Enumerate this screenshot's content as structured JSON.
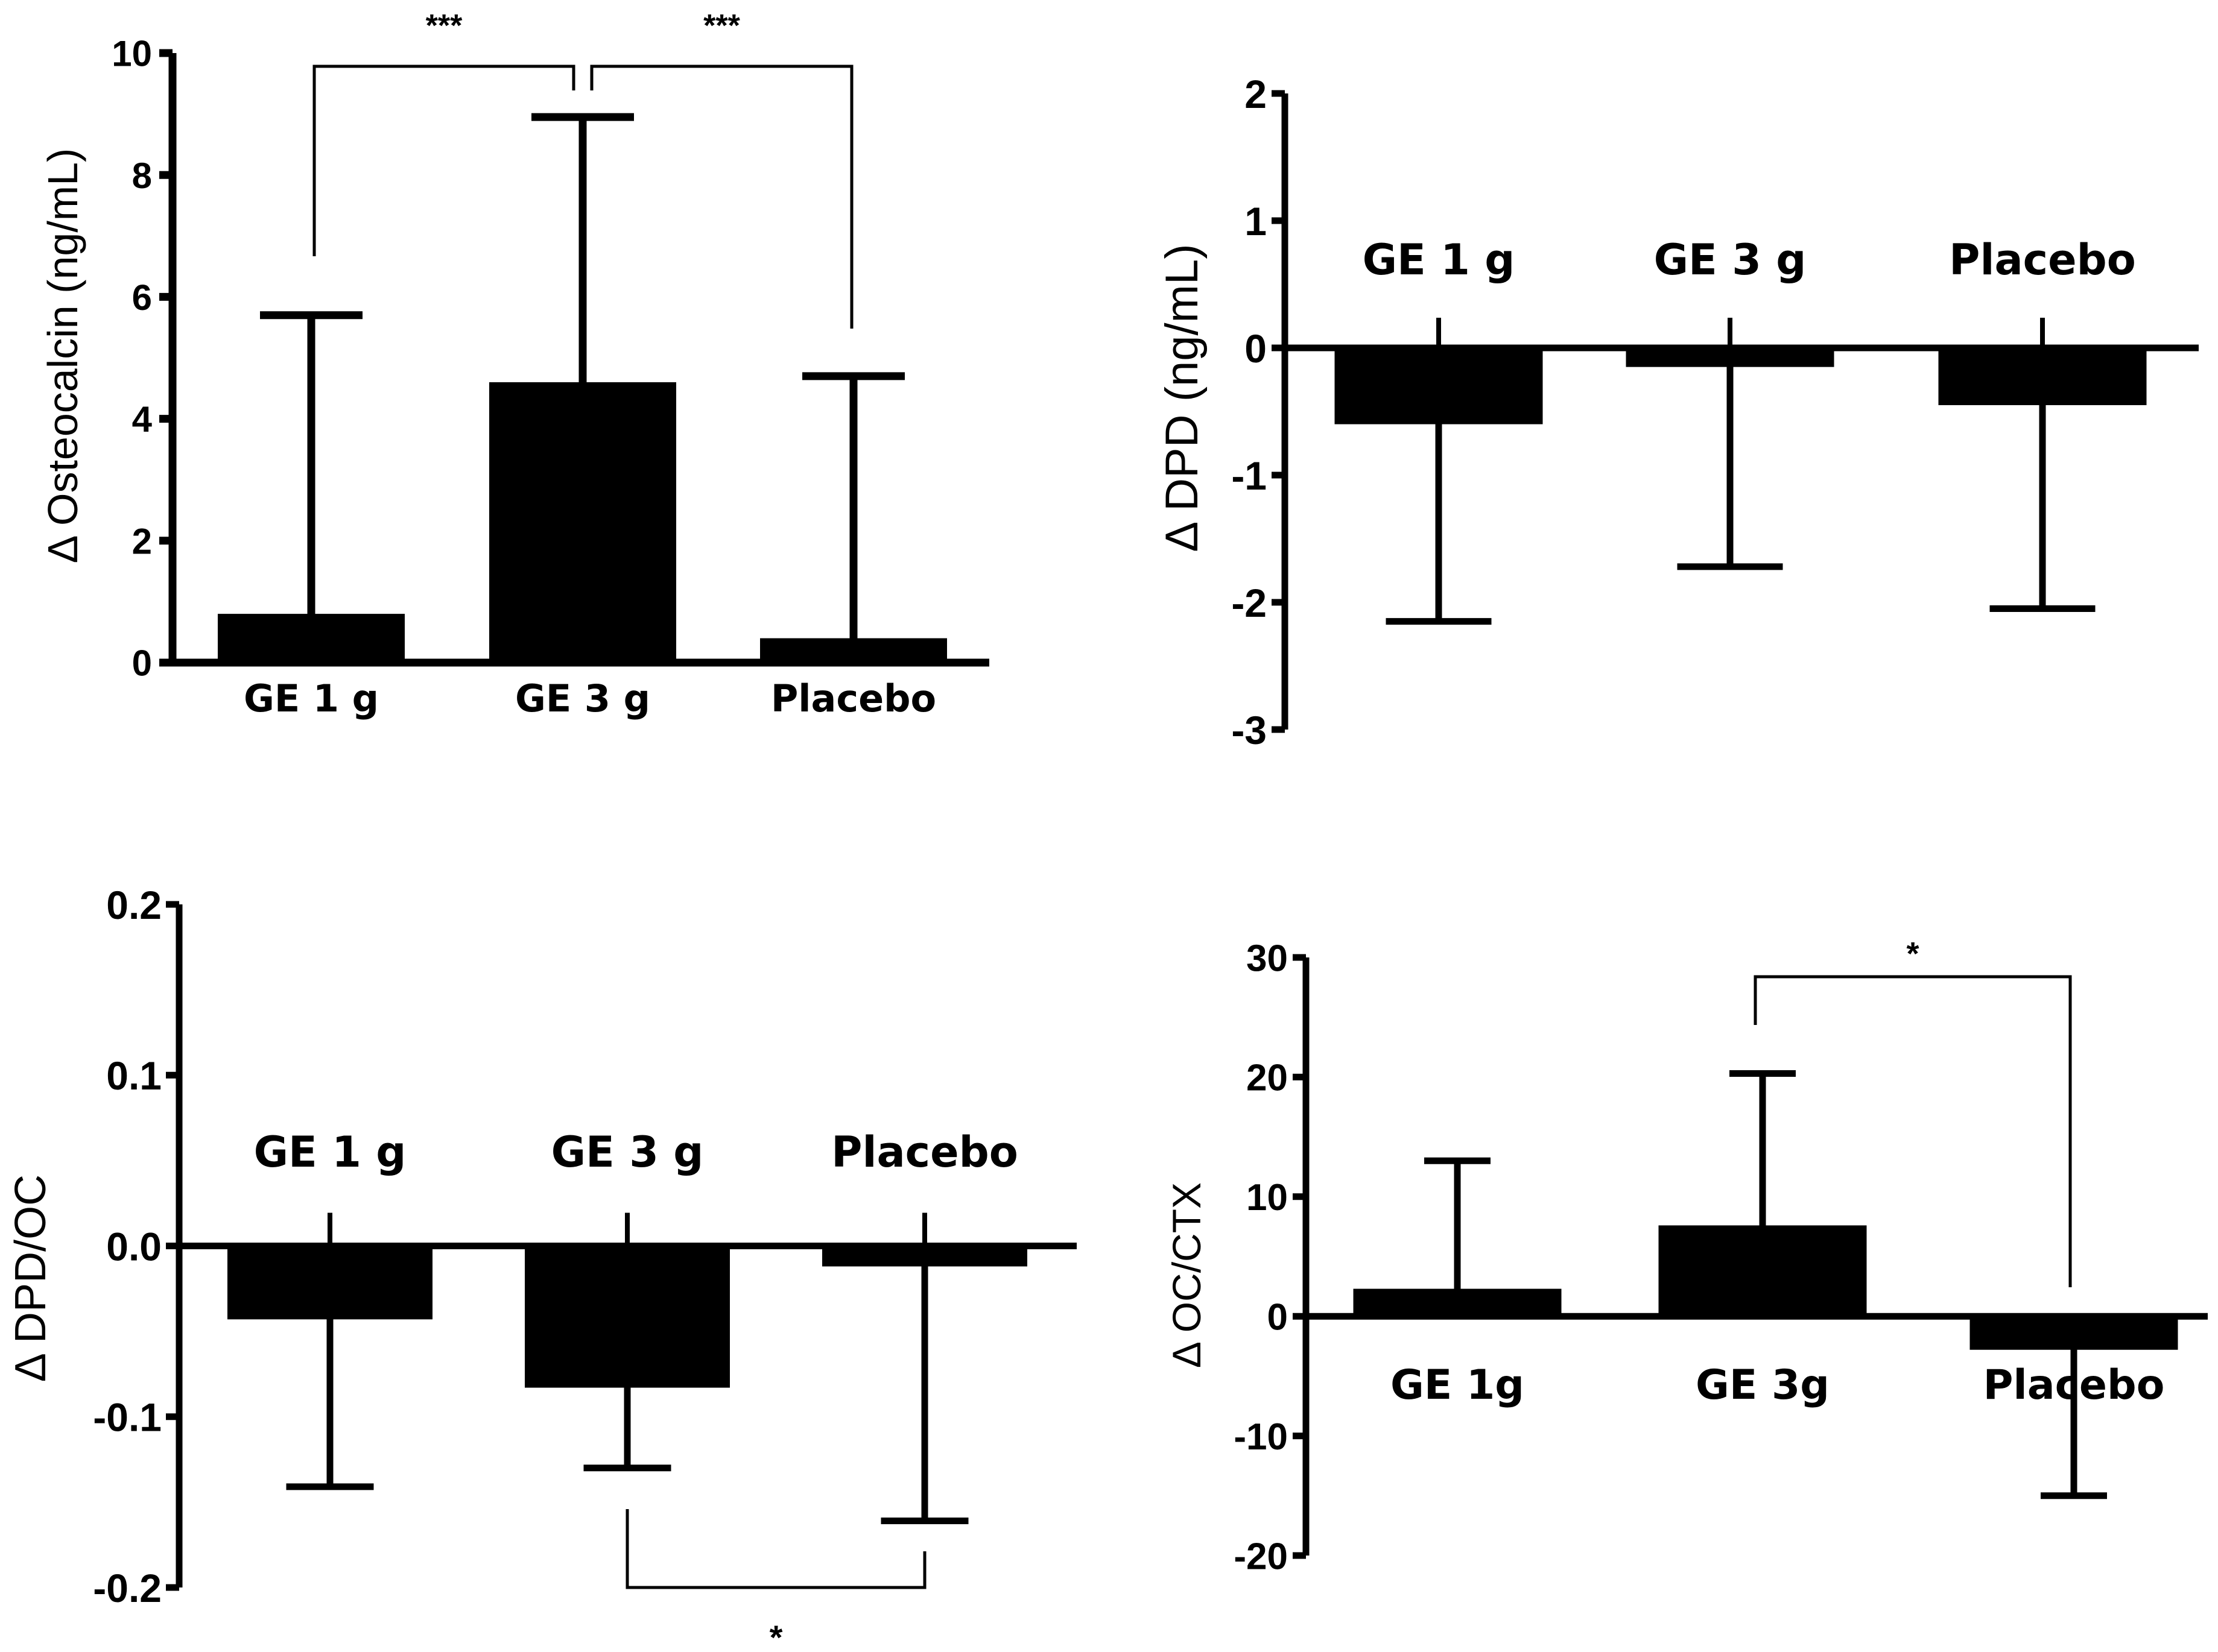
{
  "chart_data": [
    {
      "type": "bar",
      "panel": "top-left",
      "categories": [
        "GE 1 g",
        "GE 3 g",
        "Placebo"
      ],
      "values": [
        0.8,
        4.6,
        0.4
      ],
      "error_bars": [
        5.7,
        8.95,
        4.7
      ],
      "ylabel": "Δ Osteocalcin (ng/mL)",
      "ylim": [
        0,
        10
      ],
      "yticks": [
        "0",
        "2",
        "4",
        "6",
        "8",
        "10"
      ],
      "category_label_position": "below-axis",
      "significance": [
        {
          "from": "GE 1 g",
          "to": "GE 3 g",
          "label": "***"
        },
        {
          "from": "GE 3 g",
          "to": "Placebo",
          "label": "***"
        }
      ]
    },
    {
      "type": "bar",
      "panel": "top-right",
      "categories": [
        "GE 1 g",
        "GE 3 g",
        "Placebo"
      ],
      "values": [
        -0.6,
        -0.15,
        -0.45
      ],
      "error_bars": [
        -2.15,
        -1.72,
        -2.05
      ],
      "ylabel": "Δ DPD (ng/mL)",
      "ylim": [
        -3,
        2
      ],
      "yticks": [
        "-3",
        "-2",
        "-1",
        "0",
        "1",
        "2"
      ],
      "category_label_position": "above-bars",
      "significance": []
    },
    {
      "type": "bar",
      "panel": "bottom-left",
      "categories": [
        "GE 1 g",
        "GE 3 g",
        "Placebo"
      ],
      "values": [
        -0.043,
        -0.083,
        -0.012
      ],
      "error_bars": [
        -0.141,
        -0.13,
        -0.161
      ],
      "ylabel": "Δ DPD/OC",
      "ylim": [
        -0.2,
        0.2
      ],
      "yticks": [
        "-0.2",
        "-0.1",
        "0.0",
        "0.1",
        "0.2"
      ],
      "category_label_position": "above-bars",
      "significance": [
        {
          "from": "GE 3 g",
          "to": "Placebo",
          "label": "*"
        }
      ]
    },
    {
      "type": "bar",
      "panel": "bottom-right",
      "categories": [
        "GE 1g",
        "GE 3g",
        "Placebo"
      ],
      "values": [
        2.3,
        7.6,
        -2.8
      ],
      "error_bars": [
        13,
        20.3,
        -15
      ],
      "ylabel": "Δ OC/CTX",
      "ylim": [
        -20,
        30
      ],
      "yticks": [
        "-20",
        "-10",
        "0",
        "10",
        "20",
        "30"
      ],
      "category_label_position": "below-axis",
      "significance": [
        {
          "from": "GE 3g",
          "to": "Placebo",
          "label": "*"
        }
      ]
    }
  ]
}
